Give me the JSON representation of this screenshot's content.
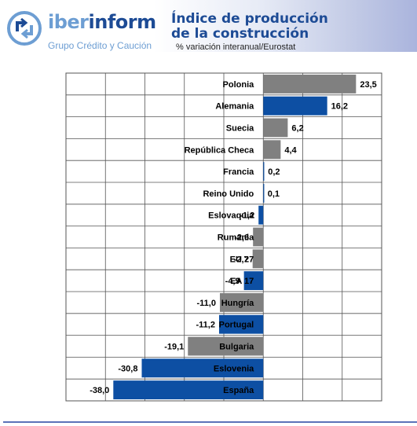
{
  "header": {
    "brand_part1": "iber",
    "brand_part2": "inform",
    "brand_sub": "Grupo Crédito y Caución",
    "title_line1": "Índice de producción",
    "title_line2": "de la construcción",
    "subtitle": "% variación interanual/Eurostat"
  },
  "colors": {
    "highlight": "#0d4fa3",
    "neutral": "#808080",
    "grid": "#555555",
    "brand_dark": "#1d4b95",
    "brand_light": "#6d9ed3"
  },
  "icons": [
    "iberinform-logo-icon"
  ],
  "chart_data": {
    "type": "bar",
    "orientation": "horizontal",
    "categories": [
      "Polonia",
      "Alemania",
      "Suecia",
      "República Checa",
      "Francia",
      "Reino Unido",
      "Eslovaquia",
      "Rumania",
      "EU 27",
      "EA 17",
      "Hungría",
      "Portugal",
      "Bulgaria",
      "Eslovenia",
      "España"
    ],
    "values": [
      23.5,
      16.2,
      6.2,
      4.4,
      0.2,
      0.1,
      -1.2,
      -2.6,
      -2.7,
      -4.9,
      -11.0,
      -11.2,
      -19.1,
      -30.8,
      -38.0
    ],
    "value_labels": [
      "23,5",
      "16,2",
      "6,2",
      "4,4",
      "0,2",
      "0,1",
      "-1,2",
      "-2,6",
      "-2,7",
      "-4,9",
      "-11,0",
      "-11,2",
      "-19,1",
      "-30,8",
      "-38,0"
    ],
    "highlight": [
      false,
      true,
      false,
      false,
      true,
      true,
      true,
      false,
      false,
      true,
      false,
      true,
      false,
      true,
      true
    ],
    "xlim": [
      -50,
      30
    ],
    "grid": true,
    "legend": "none"
  }
}
